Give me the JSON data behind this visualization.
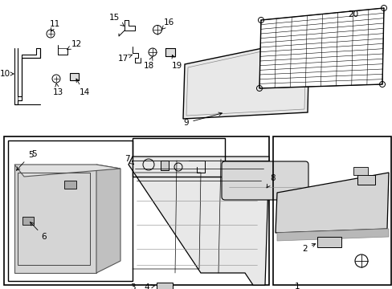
{
  "bg": "#ffffff",
  "lc": "#000000",
  "figsize": [
    4.89,
    3.6
  ],
  "dpi": 100
}
